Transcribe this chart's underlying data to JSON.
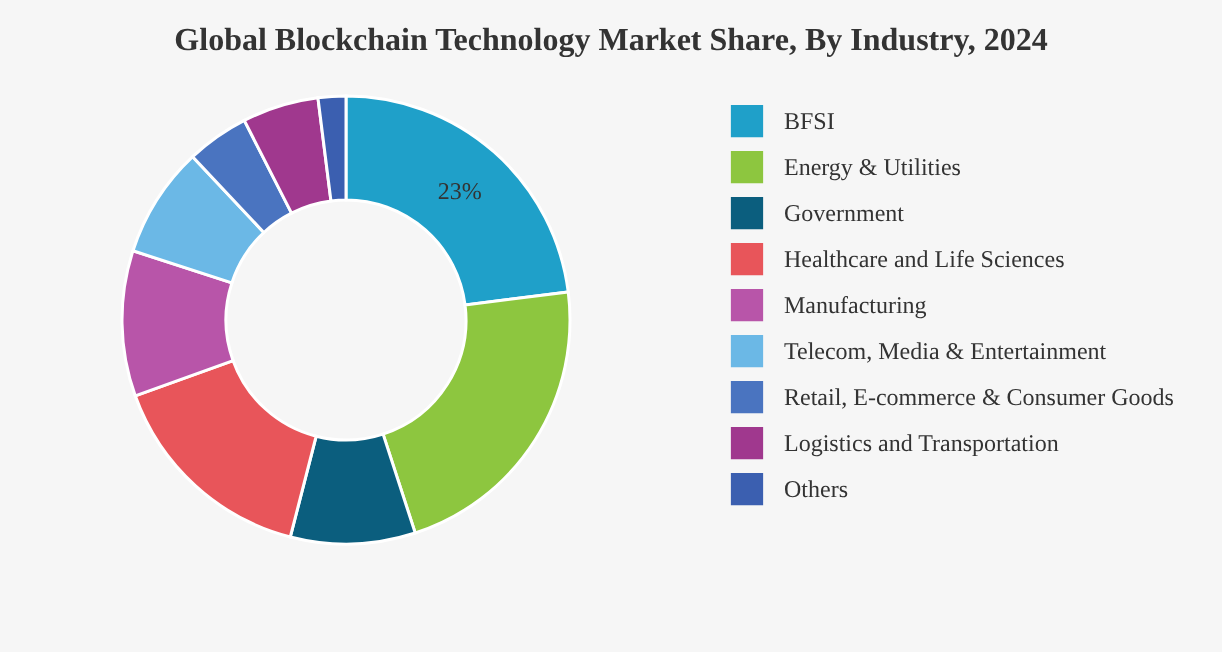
{
  "chart_data": {
    "type": "donut",
    "title": "Global Blockchain Technology Market Share, By Industry, 2024",
    "categories": [
      "BFSI",
      "Energy & Utilities",
      "Government",
      "Healthcare and Life Sciences",
      "Manufacturing",
      "Telecom, Media & Entertainment",
      "Retail, E-commerce & Consumer Goods",
      "Logistics and Transportation",
      "Others"
    ],
    "values": [
      23,
      22,
      9,
      15.5,
      10.5,
      8,
      4.5,
      5.5,
      2
    ],
    "colors": [
      "#1fa0c9",
      "#8dc63f",
      "#0b5e7e",
      "#e8555a",
      "#b855a9",
      "#6bb8e6",
      "#4a74c0",
      "#a0388e",
      "#3b5fb0"
    ],
    "value_labels": [
      "23%",
      null,
      null,
      null,
      null,
      null,
      null,
      null,
      null
    ],
    "legend": "right"
  }
}
